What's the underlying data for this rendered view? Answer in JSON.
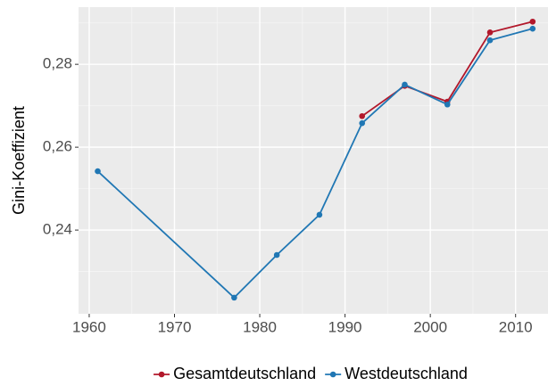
{
  "chart_data": {
    "type": "line",
    "y_label": "Gini-Koeffizient",
    "x": [
      1961,
      1977,
      1982,
      1987,
      1992,
      1997,
      2002,
      2007,
      2012
    ],
    "series": [
      {
        "name": "Gesamtdeutschland",
        "color": "#b2182b",
        "values": [
          null,
          null,
          null,
          null,
          0.2675,
          0.2748,
          0.271,
          0.2877,
          0.2903
        ]
      },
      {
        "name": "Westdeutschland",
        "color": "#2077b4",
        "values": [
          0.2542,
          0.2237,
          0.234,
          0.2437,
          0.2658,
          0.2751,
          0.2703,
          0.2858,
          0.2886
        ]
      }
    ],
    "xlim": [
      1958.75,
      2013.8
    ],
    "xticks": [
      1960,
      1970,
      1980,
      1990,
      2000,
      2010
    ],
    "ylim": [
      0.2198,
      0.2938
    ],
    "yticks": [
      {
        "value": 0.24,
        "label": "0,24"
      },
      {
        "value": 0.26,
        "label": "0,26"
      },
      {
        "value": 0.28,
        "label": "0,28"
      }
    ],
    "grid": true,
    "legend": "bottom"
  }
}
